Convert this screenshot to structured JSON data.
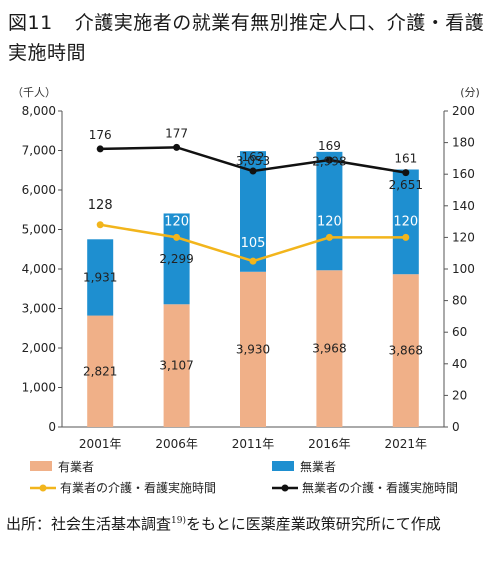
{
  "figure_label": "図11",
  "title": "介護実施者の就業有無別推定人口、介護・看護実施時間",
  "source": {
    "label": "出所：",
    "text_before": "社会生活基本調査",
    "ref": "19)",
    "text_after": "をもとに医薬産業政策研究所にて作成"
  },
  "colors": {
    "employed_bar": "#F0B088",
    "unemployed_bar": "#1E8FD0",
    "employed_line": "#F2B51C",
    "unemployed_line": "#111111"
  },
  "chart_data": {
    "type": "bar+line",
    "categories": [
      "2001年",
      "2006年",
      "2011年",
      "2016年",
      "2021年"
    ],
    "left_axis": {
      "unit": "（千人）",
      "ylim": [
        0,
        8000
      ],
      "ticks": [
        "0",
        "1,000",
        "2,000",
        "3,000",
        "4,000",
        "5,000",
        "6,000",
        "7,000",
        "8,000"
      ]
    },
    "right_axis": {
      "unit": "(分)",
      "ylim": [
        0,
        200
      ],
      "ticks": [
        "0",
        "20",
        "40",
        "60",
        "80",
        "100",
        "120",
        "140",
        "160",
        "180",
        "200"
      ]
    },
    "bar_series": [
      {
        "name": "有業者",
        "values": [
          2821,
          3107,
          3930,
          3968,
          3868
        ],
        "labels": [
          "2,821",
          "3,107",
          "3,930",
          "3,968",
          "3,868"
        ]
      },
      {
        "name": "無業者",
        "values": [
          1931,
          2299,
          3053,
          2998,
          2651
        ],
        "labels": [
          "1,931",
          "2,299",
          "3,053",
          "2,998",
          "2,651"
        ]
      }
    ],
    "line_series": [
      {
        "name": "有業者の介護・看護実施時間",
        "values": [
          128,
          120,
          105,
          120,
          120
        ]
      },
      {
        "name": "無業者の介護・看護実施時間",
        "values": [
          176,
          177,
          162,
          169,
          161
        ]
      }
    ],
    "grid": false,
    "legend_position": "bottom"
  }
}
